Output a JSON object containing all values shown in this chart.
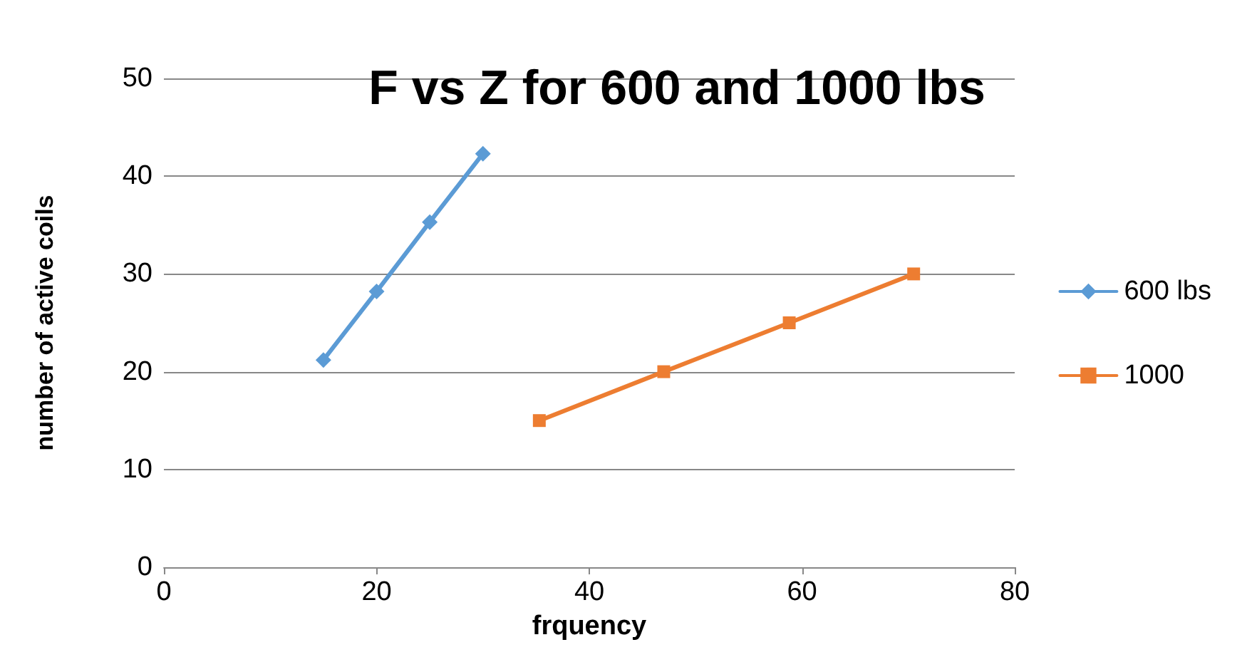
{
  "chart_data": {
    "type": "line",
    "title": "F vs Z for 600 and 1000 lbs",
    "xlabel": "frquency",
    "ylabel": "number of active coils",
    "series": [
      {
        "name": "600 lbs",
        "color": "#5b9bd5",
        "marker": "diamond",
        "x": [
          15,
          20,
          25,
          30
        ],
        "values": [
          21.2,
          28.2,
          35.3,
          42.3
        ]
      },
      {
        "name": "1000",
        "color": "#ed7d31",
        "marker": "square",
        "x": [
          35.3,
          47,
          58.8,
          70.5
        ],
        "values": [
          15,
          20,
          25,
          30
        ]
      }
    ],
    "xlim": [
      0,
      80
    ],
    "xticks": [
      0,
      20,
      40,
      60,
      80
    ],
    "ylim": [
      0,
      50
    ],
    "yticks": [
      0,
      10,
      20,
      30,
      40,
      50
    ],
    "grid": "y",
    "legend": "right",
    "line_style": "solid"
  }
}
